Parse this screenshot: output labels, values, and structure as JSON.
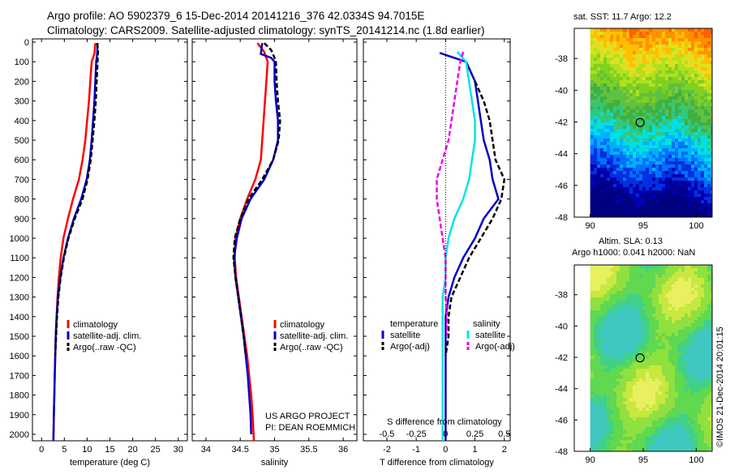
{
  "title_line1": "Argo profile: AO 5902379_6 15-Dec-2014 20141216_376 42.0334S 94.7015E",
  "title_line2": "Climatology: CARS2009. Satellite-adjusted climatology: synTS_20141214.nc (1.8d earlier)",
  "sst_title": "sat. SST: 11.7 Argo: 12.2",
  "sla_title1": "Altim. SLA: 0.13",
  "sla_title2": "Argo h1000: 0.041 h2000: NaN",
  "footer_project": "US ARGO PROJECT",
  "footer_pi": "PI: DEAN ROEMMICH",
  "side_stamp": "©IMOS 21-Dec-2014 20:01:15",
  "colors": {
    "climatology": "#ff0000",
    "satellite": "#0000cc",
    "argo": "#000000",
    "cyan": "#00e5e5",
    "magenta": "#ee00ee"
  },
  "chart_data": [
    {
      "type": "line",
      "panel": "temperature",
      "xlabel": "temperature (deg C)",
      "ylabel": "",
      "xlim": [
        -2,
        32
      ],
      "ylim": [
        2050,
        0
      ],
      "xticks": [
        0,
        5,
        10,
        15,
        20,
        25,
        30
      ],
      "yticks": [
        0,
        100,
        200,
        300,
        400,
        500,
        600,
        700,
        800,
        900,
        1000,
        1100,
        1200,
        1300,
        1400,
        1500,
        1600,
        1700,
        1800,
        1900,
        2000
      ],
      "legend": [
        "climatology",
        "satellite-adj. clim.",
        "Argo(..raw -QC)"
      ],
      "series": [
        {
          "name": "climatology",
          "style": "solid",
          "color": "#ff0000",
          "points": [
            [
              11.8,
              5
            ],
            [
              11.6,
              60
            ],
            [
              11.0,
              100
            ],
            [
              10.7,
              200
            ],
            [
              10.4,
              300
            ],
            [
              10.0,
              400
            ],
            [
              9.6,
              500
            ],
            [
              9.0,
              600
            ],
            [
              8.2,
              700
            ],
            [
              6.9,
              800
            ],
            [
              5.8,
              900
            ],
            [
              4.8,
              1000
            ],
            [
              4.2,
              1100
            ],
            [
              3.8,
              1200
            ],
            [
              3.5,
              1300
            ],
            [
              3.3,
              1400
            ],
            [
              3.1,
              1500
            ],
            [
              3.0,
              1600
            ],
            [
              2.9,
              1700
            ],
            [
              2.8,
              1800
            ],
            [
              2.7,
              1900
            ],
            [
              2.6,
              2040
            ]
          ]
        },
        {
          "name": "satellite-adj. clim.",
          "style": "solid",
          "color": "#0000cc",
          "points": [
            [
              12.3,
              5
            ],
            [
              12.2,
              60
            ],
            [
              12.0,
              100
            ],
            [
              11.8,
              200
            ],
            [
              11.6,
              300
            ],
            [
              11.3,
              400
            ],
            [
              11.0,
              500
            ],
            [
              10.6,
              600
            ],
            [
              9.9,
              700
            ],
            [
              8.7,
              800
            ],
            [
              7.1,
              900
            ],
            [
              5.8,
              1000
            ],
            [
              4.8,
              1100
            ],
            [
              4.1,
              1200
            ],
            [
              3.6,
              1300
            ],
            [
              3.3,
              1400
            ],
            [
              3.1,
              1500
            ],
            [
              3.0,
              1600
            ],
            [
              2.9,
              1700
            ],
            [
              2.8,
              1800
            ],
            [
              2.7,
              1900
            ],
            [
              2.6,
              2040
            ]
          ]
        },
        {
          "name": "Argo(..raw -QC)",
          "style": "dashed",
          "color": "#000000",
          "points": [
            [
              12.2,
              5
            ],
            [
              12.4,
              40
            ],
            [
              12.3,
              100
            ],
            [
              12.1,
              200
            ],
            [
              11.9,
              300
            ],
            [
              11.6,
              400
            ],
            [
              11.2,
              500
            ],
            [
              10.8,
              600
            ],
            [
              10.1,
              700
            ],
            [
              9.0,
              800
            ],
            [
              7.3,
              900
            ],
            [
              5.9,
              1000
            ],
            [
              4.9,
              1100
            ],
            [
              4.2,
              1200
            ],
            [
              3.7,
              1300
            ],
            [
              3.4,
              1400
            ],
            [
              3.2,
              1500
            ],
            [
              3.0,
              1600
            ]
          ]
        }
      ]
    },
    {
      "type": "line",
      "panel": "salinity",
      "xlabel": "salinity",
      "xlim": [
        33.8,
        36.2
      ],
      "ylim": [
        2050,
        0
      ],
      "xticks": [
        34,
        34.5,
        35,
        35.5,
        36
      ],
      "legend": [
        "climatology",
        "satellite-adj. clim.",
        "Argo(..raw -QC)"
      ],
      "series": [
        {
          "name": "climatology",
          "style": "solid",
          "color": "#ff0000",
          "points": [
            [
              34.75,
              5
            ],
            [
              34.85,
              50
            ],
            [
              34.9,
              100
            ],
            [
              34.88,
              200
            ],
            [
              34.86,
              300
            ],
            [
              34.84,
              400
            ],
            [
              34.82,
              500
            ],
            [
              34.8,
              600
            ],
            [
              34.72,
              700
            ],
            [
              34.6,
              800
            ],
            [
              34.5,
              900
            ],
            [
              34.43,
              1000
            ],
            [
              34.42,
              1100
            ],
            [
              34.44,
              1200
            ],
            [
              34.48,
              1300
            ],
            [
              34.52,
              1400
            ],
            [
              34.56,
              1500
            ],
            [
              34.6,
              1600
            ],
            [
              34.63,
              1700
            ],
            [
              34.66,
              1800
            ],
            [
              34.68,
              1900
            ],
            [
              34.7,
              2040
            ]
          ]
        },
        {
          "name": "satellite-adj. clim.",
          "style": "solid",
          "color": "#0000cc",
          "points": [
            [
              34.82,
              5
            ],
            [
              34.8,
              60
            ],
            [
              34.95,
              80
            ],
            [
              35.0,
              100
            ],
            [
              35.0,
              200
            ],
            [
              35.02,
              300
            ],
            [
              35.05,
              400
            ],
            [
              35.05,
              500
            ],
            [
              34.98,
              600
            ],
            [
              34.85,
              700
            ],
            [
              34.65,
              800
            ],
            [
              34.52,
              900
            ],
            [
              34.45,
              1000
            ],
            [
              34.41,
              1100
            ],
            [
              34.43,
              1200
            ],
            [
              34.47,
              1300
            ],
            [
              34.51,
              1400
            ],
            [
              34.55,
              1500
            ],
            [
              34.58,
              1600
            ],
            [
              34.61,
              1700
            ],
            [
              34.63,
              1800
            ],
            [
              34.65,
              1900
            ],
            [
              34.66,
              2000
            ]
          ]
        },
        {
          "name": "Argo(..raw -QC)",
          "style": "dashed",
          "color": "#000000",
          "points": [
            [
              34.85,
              5
            ],
            [
              34.95,
              40
            ],
            [
              35.0,
              80
            ],
            [
              35.02,
              100
            ],
            [
              35.03,
              200
            ],
            [
              35.05,
              300
            ],
            [
              35.08,
              400
            ],
            [
              35.06,
              500
            ],
            [
              34.98,
              600
            ],
            [
              34.82,
              700
            ],
            [
              34.62,
              800
            ],
            [
              34.5,
              900
            ],
            [
              34.42,
              1000
            ],
            [
              34.4,
              1100
            ],
            [
              34.43,
              1200
            ],
            [
              34.47,
              1300
            ],
            [
              34.51,
              1400
            ],
            [
              34.55,
              1500
            ],
            [
              34.58,
              1600
            ]
          ]
        }
      ]
    },
    {
      "type": "line",
      "panel": "difference",
      "xlabel": "T difference from climatology",
      "xlabel_top": "S difference from climatology",
      "xlim": [
        -2.8,
        2.2
      ],
      "ylim": [
        2050,
        0
      ],
      "xticks": [
        -2,
        -1,
        0,
        1,
        2
      ],
      "xticklabels_top": [
        "-0.5",
        "-0.25",
        "0",
        "0.25",
        "0.5"
      ],
      "legend_groups": [
        "temperature",
        "salinity"
      ],
      "legend": [
        "satellite",
        "Argo(-adj)",
        "satellite",
        "Argo(-adj)"
      ],
      "series": [
        {
          "name": "temperature satellite",
          "style": "solid",
          "color": "#0000cc",
          "points": [
            [
              -0.2,
              55
            ],
            [
              0.3,
              80
            ],
            [
              0.7,
              100
            ],
            [
              1.0,
              200
            ],
            [
              1.1,
              300
            ],
            [
              1.2,
              400
            ],
            [
              1.3,
              500
            ],
            [
              1.5,
              600
            ],
            [
              1.6,
              700
            ],
            [
              1.8,
              800
            ],
            [
              1.3,
              900
            ],
            [
              1.0,
              1000
            ],
            [
              0.6,
              1100
            ],
            [
              0.3,
              1200
            ],
            [
              0.1,
              1300
            ],
            [
              0,
              1400
            ],
            [
              0,
              1500
            ],
            [
              0,
              1600
            ],
            [
              0,
              1700
            ],
            [
              0,
              1800
            ],
            [
              0,
              1900
            ],
            [
              0,
              2040
            ]
          ]
        },
        {
          "name": "temperature Argo(-adj)",
          "style": "dashed",
          "color": "#000000",
          "points": [
            [
              1.0,
              200
            ],
            [
              1.3,
              300
            ],
            [
              1.5,
              400
            ],
            [
              1.6,
              500
            ],
            [
              1.7,
              600
            ],
            [
              2.0,
              700
            ],
            [
              1.9,
              800
            ],
            [
              1.6,
              900
            ],
            [
              1.2,
              1000
            ],
            [
              0.8,
              1100
            ],
            [
              0.5,
              1200
            ],
            [
              0.2,
              1300
            ],
            [
              0.1,
              1400
            ],
            [
              0.1,
              1500
            ],
            [
              0,
              1600
            ]
          ]
        },
        {
          "name": "salinity satellite",
          "style": "solid",
          "color": "#00e5e5",
          "points": [
            [
              0.4,
              50
            ],
            [
              0.7,
              100
            ],
            [
              0.8,
              200
            ],
            [
              0.9,
              300
            ],
            [
              1.0,
              400
            ],
            [
              1.0,
              500
            ],
            [
              0.9,
              600
            ],
            [
              0.8,
              700
            ],
            [
              0.6,
              800
            ],
            [
              0.3,
              900
            ],
            [
              0.1,
              1000
            ],
            [
              0,
              1100
            ],
            [
              0,
              1200
            ],
            [
              -0.1,
              1300
            ],
            [
              -0.1,
              1400
            ],
            [
              -0.1,
              1500
            ],
            [
              -0.1,
              1600
            ],
            [
              -0.1,
              1700
            ],
            [
              -0.1,
              1800
            ],
            [
              -0.1,
              1900
            ],
            [
              -0.1,
              2040
            ]
          ]
        },
        {
          "name": "salinity Argo(-adj)",
          "style": "dashed",
          "color": "#ee00ee",
          "points": [
            [
              0.6,
              50
            ],
            [
              0.5,
              100
            ],
            [
              0.4,
              200
            ],
            [
              0.3,
              300
            ],
            [
              0.2,
              400
            ],
            [
              0.1,
              500
            ],
            [
              -0.1,
              600
            ],
            [
              -0.3,
              700
            ],
            [
              -0.3,
              800
            ],
            [
              -0.2,
              900
            ],
            [
              -0.1,
              1000
            ],
            [
              0,
              1100
            ],
            [
              0,
              1200
            ],
            [
              0,
              1300
            ],
            [
              0.05,
              1400
            ],
            [
              0.05,
              1500
            ]
          ]
        }
      ]
    },
    {
      "type": "heatmap",
      "panel": "sst_map",
      "title": "sat. SST: 11.7 Argo: 12.2",
      "xlim": [
        88.5,
        101.5
      ],
      "ylim": [
        -48,
        -36.1
      ],
      "xticks": [
        90,
        95,
        100
      ],
      "yticks": [
        -38,
        -40,
        -42,
        -44,
        -46,
        -48
      ],
      "marker": [
        94.7015,
        -42.0334
      ]
    },
    {
      "type": "heatmap",
      "panel": "sla_map",
      "title": "Altim. SLA: 0.13",
      "subtitle": "Argo h1000: 0.041 h2000: NaN",
      "xlim": [
        88.5,
        101.5
      ],
      "ylim": [
        -48,
        -36.1
      ],
      "xticks": [
        90,
        95,
        100
      ],
      "yticks": [
        -38,
        -40,
        -42,
        -44,
        -46,
        -48
      ],
      "marker": [
        94.7015,
        -42.0334
      ]
    }
  ]
}
